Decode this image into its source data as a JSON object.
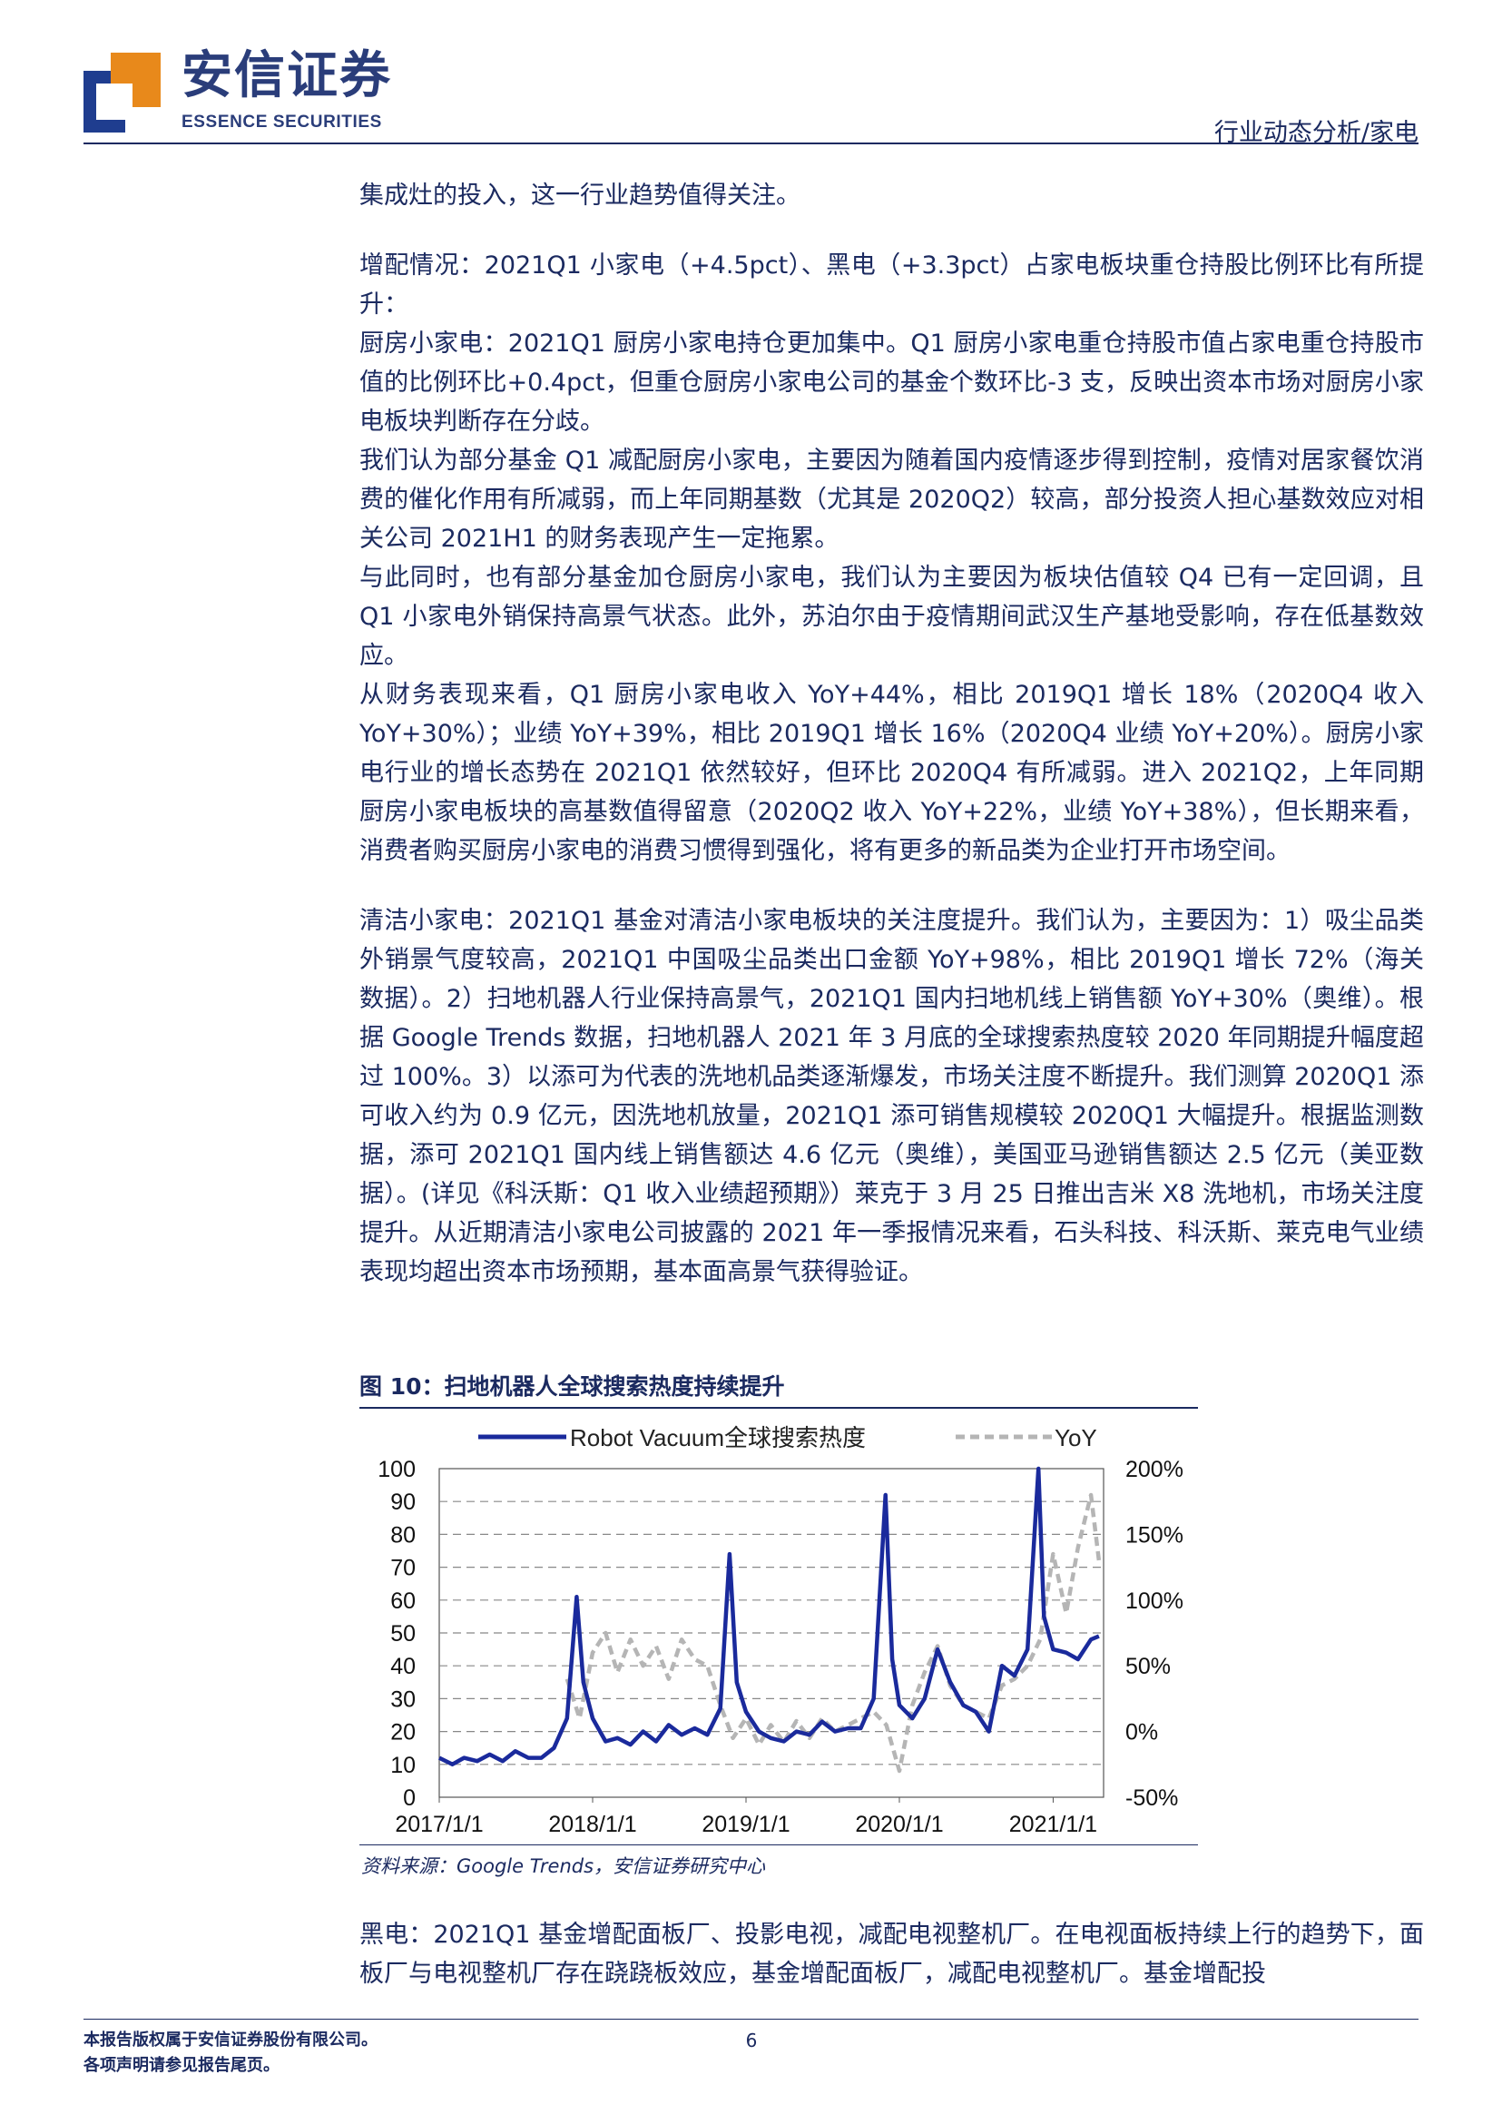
{
  "header": {
    "brand_cn": "安信证券",
    "brand_en": "ESSENCE SECURITIES",
    "category": "行业动态分析/家电"
  },
  "paragraphs": [
    "集成灶的投入，这一行业趋势值得关注。",
    "",
    "增配情况：2021Q1 小家电（+4.5pct）、黑电（+3.3pct）占家电板块重仓持股比例环比有所提升：",
    "厨房小家电：2021Q1 厨房小家电持仓更加集中。Q1 厨房小家电重仓持股市值占家电重仓持股市值的比例环比+0.4pct，但重仓厨房小家电公司的基金个数环比-3 支，反映出资本市场对厨房小家电板块判断存在分歧。",
    "我们认为部分基金 Q1 减配厨房小家电，主要因为随着国内疫情逐步得到控制，疫情对居家餐饮消费的催化作用有所减弱，而上年同期基数（尤其是 2020Q2）较高，部分投资人担心基数效应对相关公司 2021H1 的财务表现产生一定拖累。",
    "与此同时，也有部分基金加仓厨房小家电，我们认为主要因为板块估值较 Q4 已有一定回调，且 Q1 小家电外销保持高景气状态。此外，苏泊尔由于疫情期间武汉生产基地受影响，存在低基数效应。",
    "从财务表现来看，Q1 厨房小家电收入 YoY+44%，相比 2019Q1 增长 18%（2020Q4 收入 YoY+30%）；业绩 YoY+39%，相比 2019Q1 增长 16%（2020Q4 业绩 YoY+20%）。厨房小家电行业的增长态势在 2021Q1 依然较好，但环比 2020Q4 有所减弱。进入 2021Q2，上年同期厨房小家电板块的高基数值得留意（2020Q2 收入 YoY+22%，业绩 YoY+38%），但长期来看，消费者购买厨房小家电的消费习惯得到强化，将有更多的新品类为企业打开市场空间。",
    "",
    "清洁小家电：2021Q1 基金对清洁小家电板块的关注度提升。我们认为，主要因为：1）吸尘品类外销景气度较高，2021Q1 中国吸尘品类出口金额 YoY+98%，相比 2019Q1 增长 72%（海关数据）。2）扫地机器人行业保持高景气，2021Q1 国内扫地机线上销售额 YoY+30%（奥维）。根据 Google Trends 数据，扫地机器人 2021 年 3 月底的全球搜索热度较 2020 年同期提升幅度超过 100%。3）以添可为代表的洗地机品类逐渐爆发，市场关注度不断提升。我们测算 2020Q1 添可收入约为 0.9 亿元，因洗地机放量，2021Q1 添可销售规模较 2020Q1 大幅提升。根据监测数据，添可 2021Q1 国内线上销售额达 4.6 亿元（奥维），美国亚马逊销售额达 2.5 亿元（美亚数据）。(详见《科沃斯：Q1 收入业绩超预期》）莱克于 3 月 25 日推出吉米 X8 洗地机，市场关注度提升。从近期清洁小家电公司披露的 2021 年一季报情况来看，石头科技、科沃斯、莱克电气业绩表现均超出资本市场预期，基本面高景气获得验证。"
  ],
  "figure": {
    "title": "图 10：扫地机器人全球搜索热度持续提升",
    "source": "资料来源：Google Trends，安信证券研究中心"
  },
  "paragraph_after": "黑电：2021Q1 基金增配面板厂、投影电视，减配电视整机厂。在电视面板持续上行的趋势下，面板厂与电视整机厂存在跷跷板效应，基金增配面板厂，减配电视整机厂。基金增配投",
  "footer": {
    "line1": "本报告版权属于安信证券股份有限公司。",
    "line2": "各项声明请参见报告尾页。",
    "page": "6"
  },
  "chart_data": {
    "type": "line",
    "series": [
      {
        "name": "Robot Vacuum全球搜索热度",
        "axis": "left",
        "color": "#1a2a9c",
        "style": "solid",
        "points": [
          [
            "2017-01-01",
            12
          ],
          [
            "2017-02-01",
            10
          ],
          [
            "2017-03-01",
            12
          ],
          [
            "2017-04-01",
            11
          ],
          [
            "2017-05-01",
            13
          ],
          [
            "2017-06-01",
            11
          ],
          [
            "2017-07-01",
            14
          ],
          [
            "2017-08-01",
            12
          ],
          [
            "2017-09-01",
            12
          ],
          [
            "2017-10-01",
            15
          ],
          [
            "2017-11-01",
            24
          ],
          [
            "2017-11-24",
            61
          ],
          [
            "2017-12-10",
            35
          ],
          [
            "2018-01-01",
            24
          ],
          [
            "2018-02-01",
            17
          ],
          [
            "2018-03-01",
            18
          ],
          [
            "2018-04-01",
            16
          ],
          [
            "2018-05-01",
            20
          ],
          [
            "2018-06-01",
            17
          ],
          [
            "2018-07-01",
            22
          ],
          [
            "2018-08-01",
            19
          ],
          [
            "2018-09-01",
            21
          ],
          [
            "2018-10-01",
            19
          ],
          [
            "2018-11-01",
            27
          ],
          [
            "2018-11-23",
            74
          ],
          [
            "2018-12-10",
            35
          ],
          [
            "2019-01-01",
            26
          ],
          [
            "2019-02-01",
            20
          ],
          [
            "2019-03-01",
            18
          ],
          [
            "2019-04-01",
            17
          ],
          [
            "2019-05-01",
            20
          ],
          [
            "2019-06-01",
            19
          ],
          [
            "2019-07-01",
            23
          ],
          [
            "2019-08-01",
            20
          ],
          [
            "2019-09-01",
            21
          ],
          [
            "2019-10-01",
            21
          ],
          [
            "2019-11-01",
            30
          ],
          [
            "2019-11-29",
            92
          ],
          [
            "2019-12-15",
            42
          ],
          [
            "2020-01-01",
            28
          ],
          [
            "2020-02-01",
            24
          ],
          [
            "2020-03-01",
            30
          ],
          [
            "2020-04-01",
            45
          ],
          [
            "2020-05-01",
            35
          ],
          [
            "2020-06-01",
            28
          ],
          [
            "2020-07-01",
            26
          ],
          [
            "2020-08-01",
            20
          ],
          [
            "2020-09-01",
            40
          ],
          [
            "2020-10-01",
            37
          ],
          [
            "2020-11-01",
            45
          ],
          [
            "2020-11-27",
            100
          ],
          [
            "2020-12-10",
            55
          ],
          [
            "2021-01-01",
            45
          ],
          [
            "2021-02-01",
            44
          ],
          [
            "2021-03-01",
            42
          ],
          [
            "2021-04-01",
            48
          ],
          [
            "2021-04-20",
            49
          ]
        ]
      },
      {
        "name": "YoY",
        "axis": "right",
        "color": "#b5b5b5",
        "style": "dashed",
        "points": [
          [
            "2017-11-01",
            40
          ],
          [
            "2017-12-01",
            10
          ],
          [
            "2018-01-01",
            60
          ],
          [
            "2018-02-01",
            75
          ],
          [
            "2018-03-01",
            45
          ],
          [
            "2018-04-01",
            70
          ],
          [
            "2018-05-01",
            50
          ],
          [
            "2018-06-01",
            65
          ],
          [
            "2018-07-01",
            40
          ],
          [
            "2018-08-01",
            70
          ],
          [
            "2018-09-01",
            55
          ],
          [
            "2018-10-01",
            50
          ],
          [
            "2018-11-01",
            20
          ],
          [
            "2018-12-01",
            -5
          ],
          [
            "2019-01-01",
            10
          ],
          [
            "2019-02-01",
            -10
          ],
          [
            "2019-03-01",
            5
          ],
          [
            "2019-04-01",
            -8
          ],
          [
            "2019-05-01",
            8
          ],
          [
            "2019-06-01",
            -5
          ],
          [
            "2019-07-01",
            10
          ],
          [
            "2019-08-01",
            0
          ],
          [
            "2019-09-01",
            5
          ],
          [
            "2019-10-01",
            10
          ],
          [
            "2019-11-01",
            15
          ],
          [
            "2019-12-01",
            5
          ],
          [
            "2020-01-01",
            -30
          ],
          [
            "2020-02-01",
            20
          ],
          [
            "2020-03-01",
            45
          ],
          [
            "2020-04-01",
            65
          ],
          [
            "2020-05-01",
            35
          ],
          [
            "2020-06-01",
            20
          ],
          [
            "2020-07-01",
            15
          ],
          [
            "2020-08-01",
            10
          ],
          [
            "2020-09-01",
            35
          ],
          [
            "2020-10-01",
            40
          ],
          [
            "2020-11-01",
            50
          ],
          [
            "2020-12-01",
            70
          ],
          [
            "2021-01-01",
            135
          ],
          [
            "2021-02-01",
            90
          ],
          [
            "2021-03-01",
            140
          ],
          [
            "2021-04-01",
            180
          ],
          [
            "2021-04-20",
            130
          ]
        ]
      }
    ],
    "y_left": {
      "min": 0,
      "max": 100,
      "ticks": [
        0,
        10,
        20,
        30,
        40,
        50,
        60,
        70,
        80,
        90,
        100
      ]
    },
    "y_right": {
      "min": -50,
      "max": 200,
      "tick_labels": [
        "-50%",
        "0%",
        "50%",
        "100%",
        "150%",
        "200%"
      ]
    },
    "x": {
      "min": "2017-01-01",
      "max": "2021-05-01",
      "tick_labels": [
        "2017/1/1",
        "2018/1/1",
        "2019/1/1",
        "2020/1/1",
        "2021/1/1"
      ]
    },
    "grid": true,
    "legend": "top"
  }
}
